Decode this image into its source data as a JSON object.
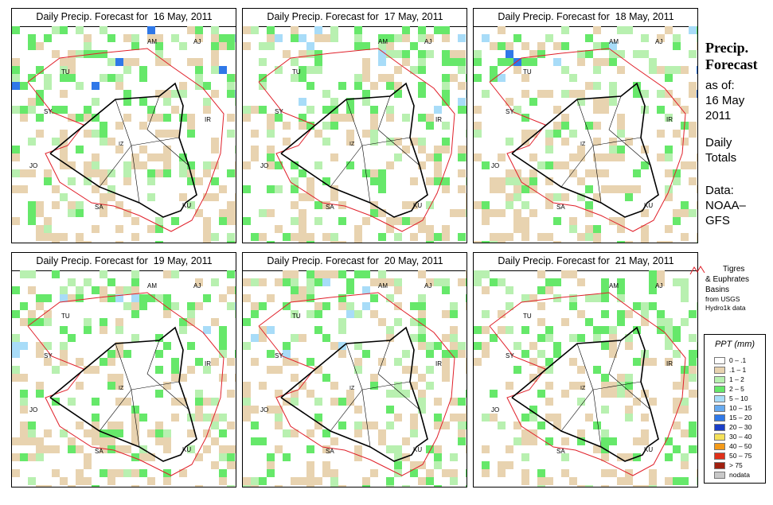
{
  "panels": [
    {
      "title": "Daily Precip. Forecast for  16 May, 2011",
      "seed": 16
    },
    {
      "title": "Daily Precip. Forecast for  17 May, 2011",
      "seed": 17
    },
    {
      "title": "Daily Precip. Forecast for  18 May, 2011",
      "seed": 18
    },
    {
      "title": "Daily Precip. Forecast for  19 May, 2011",
      "seed": 19
    },
    {
      "title": "Daily Precip. Forecast for  20 May, 2011",
      "seed": 20
    },
    {
      "title": "Daily Precip. Forecast for  21 May, 2011",
      "seed": 21
    }
  ],
  "country_labels": [
    "AM",
    "AJ",
    "TU",
    "SY",
    "IR",
    "JO",
    "SA",
    "KU",
    "IZ"
  ],
  "sidebar": {
    "title_line1": "Precip.",
    "title_line2": "Forecast",
    "asof_line1": "as of:",
    "asof_line2": "16 May",
    "asof_line3": "2011",
    "totals_line1": "Daily",
    "totals_line2": "Totals",
    "data_line1": "Data:",
    "data_line2": "NOAA–",
    "data_line3": "GFS"
  },
  "basin_note": {
    "line1": "Tigres",
    "line2": "& Euphrates",
    "line3": "Basins",
    "line4": "from USGS",
    "line5": "Hydro1k data",
    "color": "#e0202a"
  },
  "legend": {
    "title": "PPT (mm)",
    "items": [
      {
        "label": "0 – .1",
        "color": "#ffffff"
      },
      {
        "label": ".1 – 1",
        "color": "#e8d3b0"
      },
      {
        "label": "1 – 2",
        "color": "#b8f0b0"
      },
      {
        "label": "2 – 5",
        "color": "#66e86a"
      },
      {
        "label": "5 – 10",
        "color": "#a8dcf8"
      },
      {
        "label": "10 – 15",
        "color": "#66aaf0"
      },
      {
        "label": "15 – 20",
        "color": "#2f78e8"
      },
      {
        "label": "20 – 30",
        "color": "#1a3ec8"
      },
      {
        "label": "30 – 40",
        "color": "#f5e15a"
      },
      {
        "label": "40 – 50",
        "color": "#f49a1a"
      },
      {
        "label": "50 – 75",
        "color": "#e0301a"
      },
      {
        "label": "> 75",
        "color": "#a02010"
      },
      {
        "label": "nodata",
        "color": "#c8c8c8"
      }
    ]
  }
}
